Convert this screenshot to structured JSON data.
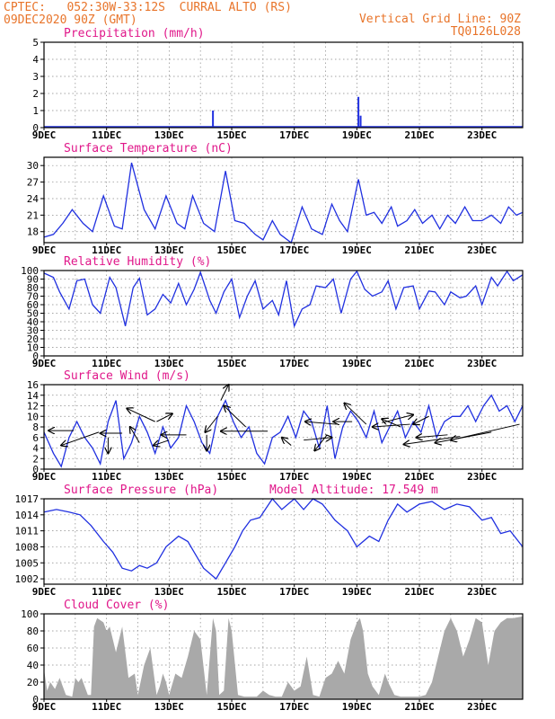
{
  "header": {
    "line1_left": "CPTEC:   052:30W-33:12S  CURRAL ALTO (RS)",
    "line2_left": "09DEC2020 90Z (GMT)",
    "line1_right": "Vertical Grid Line: 90Z",
    "line2_right": "TQ0126L028",
    "model_altitude": "Model Altitude: 17.549 m"
  },
  "x_ticks": [
    "9DEC",
    "11DEC",
    "13DEC",
    "15DEC",
    "17DEC",
    "19DEC",
    "21DEC",
    "23DEC"
  ],
  "colors": {
    "header": "#e8742a",
    "title": "#e0178a",
    "line": "#2030e0",
    "fill": "#a9a9a9",
    "arrow": "#000000"
  },
  "chart_data": [
    {
      "type": "bar",
      "title": "Precipitation (mm/h)",
      "ylim": [
        0,
        5
      ],
      "yticks": [
        "0",
        "1",
        "2",
        "3",
        "4",
        "5"
      ],
      "x_units": "days since 09DEC",
      "bars": [
        {
          "x": 5.4,
          "y": 1.0
        },
        {
          "x": 10.05,
          "y": 1.8
        },
        {
          "x": 10.12,
          "y": 0.7
        }
      ]
    },
    {
      "type": "line",
      "title": "Surface Temperature (nC)",
      "ylim": [
        16,
        31.5
      ],
      "yticks": [
        "18",
        "21",
        "24",
        "27",
        "30"
      ],
      "x_units": "days since 09DEC",
      "x": [
        0,
        0.3,
        0.6,
        0.9,
        1.25,
        1.55,
        1.9,
        2.25,
        2.5,
        2.8,
        3.2,
        3.55,
        3.9,
        4.25,
        4.5,
        4.75,
        5.1,
        5.45,
        5.8,
        6.1,
        6.4,
        6.75,
        7.0,
        7.3,
        7.55,
        7.9,
        8.25,
        8.55,
        8.9,
        9.2,
        9.45,
        9.7,
        10.05,
        10.3,
        10.55,
        10.8,
        11.1,
        11.3,
        11.6,
        11.85,
        12.1,
        12.4,
        12.65,
        12.9,
        13.15,
        13.45,
        13.7,
        14.0,
        14.3,
        14.6,
        14.85,
        15.1,
        15.3
      ],
      "y": [
        17,
        17.5,
        19.5,
        22.0,
        19.5,
        18.0,
        24.5,
        19.0,
        18.5,
        30.5,
        22.0,
        18.5,
        24.5,
        19.5,
        18.5,
        24.5,
        19.5,
        18.0,
        29.0,
        20.0,
        19.5,
        17.5,
        16.5,
        20.0,
        17.5,
        16.0,
        22.5,
        18.5,
        17.5,
        23.0,
        20.0,
        18.0,
        27.5,
        21.0,
        21.5,
        19.5,
        22.5,
        19.0,
        20.0,
        22.0,
        19.5,
        21.0,
        18.5,
        21.0,
        19.5,
        22.5,
        20.0,
        20.0,
        21.0,
        19.5,
        22.5,
        21.0,
        21.5
      ]
    },
    {
      "type": "line",
      "title": "Relative Humidity (%)",
      "ylim": [
        0,
        100
      ],
      "yticks": [
        "0",
        "10",
        "20",
        "30",
        "40",
        "50",
        "60",
        "70",
        "80",
        "90",
        "100"
      ],
      "x_units": "days since 09DEC",
      "x": [
        0,
        0.3,
        0.5,
        0.8,
        1.05,
        1.3,
        1.55,
        1.8,
        2.1,
        2.3,
        2.6,
        2.85,
        3.05,
        3.3,
        3.55,
        3.8,
        4.05,
        4.3,
        4.55,
        4.8,
        5.0,
        5.3,
        5.5,
        5.75,
        6.0,
        6.25,
        6.5,
        6.75,
        7.0,
        7.3,
        7.5,
        7.75,
        8.0,
        8.25,
        8.5,
        8.7,
        9.0,
        9.25,
        9.5,
        9.8,
        10.0,
        10.25,
        10.5,
        10.8,
        11.0,
        11.25,
        11.5,
        11.8,
        12.0,
        12.3,
        12.5,
        12.8,
        13.0,
        13.3,
        13.5,
        13.8,
        14.0,
        14.3,
        14.5,
        14.8,
        15.0,
        15.3
      ],
      "y": [
        97,
        92,
        75,
        55,
        88,
        90,
        60,
        50,
        92,
        80,
        35,
        80,
        91,
        48,
        55,
        72,
        62,
        85,
        60,
        78,
        98,
        65,
        50,
        75,
        90,
        45,
        70,
        88,
        55,
        65,
        48,
        88,
        35,
        55,
        60,
        82,
        80,
        90,
        50,
        90,
        99,
        78,
        70,
        75,
        88,
        55,
        80,
        82,
        55,
        76,
        75,
        60,
        75,
        68,
        70,
        82,
        60,
        92,
        82,
        99,
        88,
        95
      ]
    },
    {
      "type": "line",
      "title": "Surface Wind (m/s)",
      "ylim": [
        0,
        16
      ],
      "yticks": [
        "0",
        "2",
        "4",
        "6",
        "8",
        "10",
        "12",
        "14",
        "16"
      ],
      "x_units": "days since 09DEC",
      "x": [
        0,
        0.3,
        0.55,
        0.8,
        1.05,
        1.3,
        1.55,
        1.8,
        2.05,
        2.3,
        2.55,
        2.8,
        3.05,
        3.3,
        3.55,
        3.8,
        4.05,
        4.3,
        4.55,
        4.8,
        5.05,
        5.3,
        5.55,
        5.8,
        6.05,
        6.3,
        6.55,
        6.8,
        7.05,
        7.3,
        7.55,
        7.8,
        8.05,
        8.3,
        8.55,
        8.8,
        9.05,
        9.3,
        9.55,
        9.8,
        10.05,
        10.3,
        10.55,
        10.8,
        11.05,
        11.3,
        11.55,
        11.8,
        12.05,
        12.3,
        12.55,
        12.8,
        13.05,
        13.3,
        13.55,
        13.8,
        14.05,
        14.3,
        14.55,
        14.8,
        15.05,
        15.3
      ],
      "y": [
        7,
        3,
        0.5,
        6,
        9,
        6,
        4,
        1,
        9,
        13,
        2,
        5,
        10,
        7,
        3,
        8,
        4,
        6,
        12,
        9,
        5,
        3,
        10,
        13,
        9,
        6,
        8,
        3,
        1,
        6,
        7,
        10,
        6,
        11,
        9,
        4,
        12,
        2,
        8,
        11,
        9,
        6,
        11,
        5,
        8,
        11,
        6,
        9,
        7,
        12,
        6,
        9,
        10,
        10,
        12,
        9,
        12,
        14,
        11,
        12,
        9,
        12
      ],
      "arrows": [
        {
          "x": 0.95,
          "y": 7.3,
          "dx": -0.8,
          "dy": 0.0
        },
        {
          "x": 1.75,
          "y": 7.0,
          "dx": -1.2,
          "dy": -2.5
        },
        {
          "x": 2.05,
          "y": 6.0,
          "dx": 0.0,
          "dy": -3.0
        },
        {
          "x": 2.5,
          "y": 6.8,
          "dx": -0.7,
          "dy": 0.0
        },
        {
          "x": 3.05,
          "y": 5.0,
          "dx": -0.3,
          "dy": 3.0
        },
        {
          "x": 3.55,
          "y": 9.0,
          "dx": -0.9,
          "dy": 2.5
        },
        {
          "x": 3.6,
          "y": 9.0,
          "dx": 0.5,
          "dy": 1.5
        },
        {
          "x": 4.0,
          "y": 5.5,
          "dx": -0.5,
          "dy": -1.0
        },
        {
          "x": 4.55,
          "y": 6.5,
          "dx": -0.8,
          "dy": 0.0
        },
        {
          "x": 5.2,
          "y": 6.5,
          "dx": 0.0,
          "dy": -3.0
        },
        {
          "x": 5.55,
          "y": 10.0,
          "dx": -0.4,
          "dy": -3.0
        },
        {
          "x": 5.65,
          "y": 13.0,
          "dx": 0.25,
          "dy": 3.0
        },
        {
          "x": 6.45,
          "y": 8.0,
          "dx": -0.7,
          "dy": 4.0
        },
        {
          "x": 7.15,
          "y": 7.2,
          "dx": -1.5,
          "dy": 0.0
        },
        {
          "x": 7.9,
          "y": 4.5,
          "dx": -0.3,
          "dy": 1.5
        },
        {
          "x": 8.3,
          "y": 5.5,
          "dx": 0.9,
          "dy": 0.5
        },
        {
          "x": 9.05,
          "y": 6.5,
          "dx": -0.4,
          "dy": -3.0
        },
        {
          "x": 9.35,
          "y": 8.5,
          "dx": -1.0,
          "dy": 0.5
        },
        {
          "x": 9.85,
          "y": 9.0,
          "dx": -0.6,
          "dy": 0.0
        },
        {
          "x": 10.3,
          "y": 8.5,
          "dx": -0.7,
          "dy": 4.0
        },
        {
          "x": 10.8,
          "y": 8.8,
          "dx": 1.0,
          "dy": 1.5
        },
        {
          "x": 11.4,
          "y": 8.0,
          "dx": -0.6,
          "dy": 1.5
        },
        {
          "x": 11.7,
          "y": 8.5,
          "dx": -1.2,
          "dy": -0.5
        },
        {
          "x": 12.3,
          "y": 10.0,
          "dx": -0.5,
          "dy": -1.5
        },
        {
          "x": 12.9,
          "y": 6.5,
          "dx": -1.0,
          "dy": -0.5
        },
        {
          "x": 13.3,
          "y": 6.2,
          "dx": -1.8,
          "dy": -1.5
        },
        {
          "x": 14.3,
          "y": 7.0,
          "dx": -1.8,
          "dy": -2.0
        },
        {
          "x": 15.2,
          "y": 8.5,
          "dx": -2.2,
          "dy": -3.0
        }
      ]
    },
    {
      "type": "line",
      "title": "Surface Pressure (hPa)",
      "ylim": [
        1001,
        1017
      ],
      "yticks": [
        "1002",
        "1005",
        "1008",
        "1011",
        "1014",
        "1017"
      ],
      "x_units": "days since 09DEC",
      "x": [
        0,
        0.4,
        0.8,
        1.15,
        1.5,
        1.9,
        2.2,
        2.5,
        2.8,
        3.05,
        3.3,
        3.6,
        3.9,
        4.3,
        4.6,
        4.8,
        5.1,
        5.5,
        5.8,
        6.1,
        6.35,
        6.6,
        6.9,
        7.3,
        7.6,
        8.0,
        8.3,
        8.6,
        8.9,
        9.3,
        9.7,
        10.0,
        10.4,
        10.7,
        11.0,
        11.3,
        11.6,
        12.0,
        12.4,
        12.8,
        13.2,
        13.6,
        14.0,
        14.3,
        14.6,
        14.9,
        15.3
      ],
      "y": [
        1014.5,
        1015,
        1014.5,
        1014,
        1012,
        1009,
        1007,
        1004,
        1003.5,
        1004.5,
        1004,
        1005,
        1008,
        1010,
        1009,
        1007,
        1004,
        1002,
        1005,
        1008,
        1011,
        1013,
        1013.5,
        1017,
        1015,
        1017,
        1015,
        1017,
        1016,
        1013,
        1011,
        1008,
        1010,
        1009,
        1013,
        1016,
        1014.5,
        1016,
        1016.5,
        1015,
        1016,
        1015.5,
        1013,
        1013.5,
        1010.5,
        1011,
        1008
      ]
    },
    {
      "type": "area",
      "title": "Cloud Cover (%)",
      "ylim": [
        0,
        100
      ],
      "yticks": [
        "0",
        "20",
        "40",
        "60",
        "80",
        "100"
      ],
      "x_units": "days since 09DEC",
      "x": [
        0,
        0.1,
        0.2,
        0.35,
        0.5,
        0.7,
        0.9,
        1.0,
        1.1,
        1.2,
        1.4,
        1.5,
        1.6,
        1.7,
        1.9,
        2.0,
        2.1,
        2.3,
        2.5,
        2.7,
        2.9,
        3.0,
        3.2,
        3.4,
        3.6,
        3.7,
        3.8,
        3.9,
        4.0,
        4.2,
        4.4,
        4.6,
        4.8,
        5.0,
        5.2,
        5.4,
        5.5,
        5.6,
        5.75,
        5.9,
        6.0,
        6.2,
        6.4,
        6.6,
        6.8,
        7.0,
        7.2,
        7.4,
        7.6,
        7.8,
        8.0,
        8.2,
        8.4,
        8.6,
        8.8,
        9.0,
        9.2,
        9.4,
        9.6,
        9.8,
        10.0,
        10.1,
        10.2,
        10.35,
        10.5,
        10.7,
        10.9,
        11.0,
        11.2,
        11.4,
        11.6,
        11.8,
        12.0,
        12.2,
        12.4,
        12.6,
        12.8,
        13.0,
        13.2,
        13.4,
        13.6,
        13.8,
        14.0,
        14.2,
        14.4,
        14.6,
        14.8,
        15.0,
        15.3
      ],
      "y": [
        35,
        10,
        20,
        12,
        25,
        5,
        3,
        25,
        20,
        25,
        5,
        5,
        85,
        95,
        90,
        80,
        85,
        55,
        85,
        25,
        30,
        5,
        40,
        60,
        5,
        15,
        30,
        20,
        5,
        30,
        25,
        50,
        80,
        70,
        5,
        95,
        80,
        5,
        10,
        95,
        80,
        5,
        3,
        3,
        3,
        10,
        5,
        3,
        3,
        20,
        10,
        15,
        50,
        5,
        3,
        25,
        30,
        45,
        30,
        70,
        90,
        95,
        80,
        30,
        15,
        5,
        30,
        20,
        5,
        3,
        3,
        3,
        3,
        5,
        20,
        50,
        80,
        95,
        80,
        50,
        70,
        95,
        90,
        40,
        80,
        90,
        95,
        95,
        97
      ]
    }
  ]
}
